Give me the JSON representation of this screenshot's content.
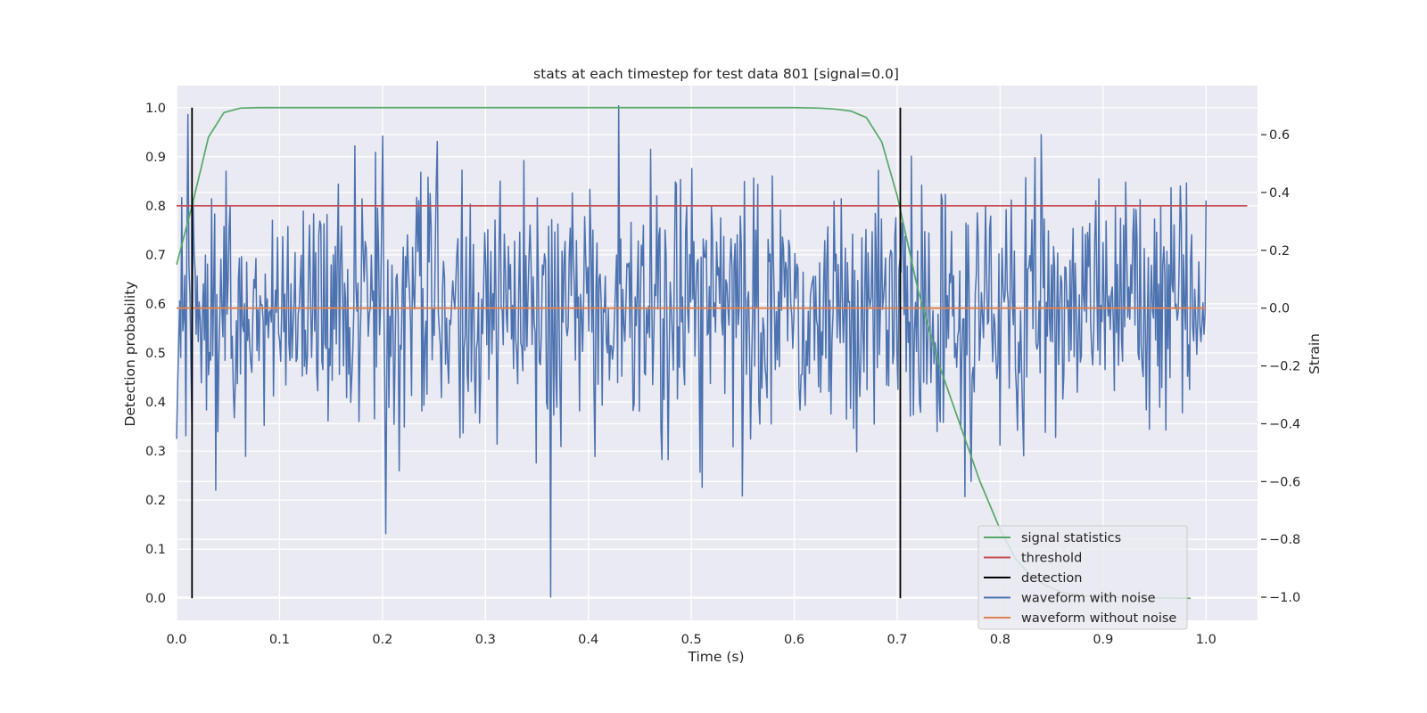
{
  "chart_data": {
    "type": "line",
    "title": "stats at each timestep for test data 801 [signal=0.0]",
    "xlabel": "Time (s)",
    "ylabel_left": "Detection probability",
    "ylabel_right": "Strain",
    "xlim": [
      0.0,
      1.05
    ],
    "ylim_left": [
      -0.045,
      1.045
    ],
    "ylim_right": [
      -1.08,
      0.77
    ],
    "xticks": [
      0.0,
      0.1,
      0.2,
      0.3,
      0.4,
      0.5,
      0.6,
      0.7,
      0.8,
      0.9,
      1.0
    ],
    "xtick_labels": [
      "0.0",
      "0.1",
      "0.2",
      "0.3",
      "0.4",
      "0.5",
      "0.6",
      "0.7",
      "0.8",
      "0.9",
      "1.0"
    ],
    "yticks_left": [
      0.0,
      0.1,
      0.2,
      0.3,
      0.4,
      0.5,
      0.6,
      0.7,
      0.8,
      0.9,
      1.0
    ],
    "ytick_labels_left": [
      "0.0",
      "0.1",
      "0.2",
      "0.3",
      "0.4",
      "0.5",
      "0.6",
      "0.7",
      "0.8",
      "0.9",
      "1.0"
    ],
    "yticks_right": [
      0.6,
      0.4,
      0.2,
      0.0,
      -0.2,
      -0.4,
      -0.6,
      -0.8,
      -1.0
    ],
    "ytick_labels_right": [
      "0.6",
      "0.4",
      "0.2",
      "0.0",
      "−0.2",
      "−0.4",
      "−0.6",
      "−0.8",
      "−1.0"
    ],
    "grid": true,
    "legend_position": "lower right",
    "series": [
      {
        "name": "signal statistics",
        "axis": "left",
        "color": "#55a868",
        "x": [
          0.0,
          0.015,
          0.031,
          0.046,
          0.062,
          0.08,
          0.1,
          0.2,
          0.3,
          0.4,
          0.5,
          0.6,
          0.625,
          0.64,
          0.655,
          0.67,
          0.685,
          0.7,
          0.72,
          0.74,
          0.76,
          0.78,
          0.8,
          0.815,
          0.83,
          0.845,
          0.86,
          0.88,
          0.9,
          0.95,
          0.985
        ],
        "y": [
          0.68,
          0.8,
          0.94,
          0.99,
          0.999,
          1.0,
          1.0,
          1.0,
          1.0,
          1.0,
          1.0,
          1.0,
          0.999,
          0.997,
          0.993,
          0.98,
          0.93,
          0.82,
          0.63,
          0.48,
          0.36,
          0.24,
          0.14,
          0.08,
          0.045,
          0.025,
          0.012,
          0.005,
          0.002,
          0.001,
          0.0
        ]
      },
      {
        "name": "threshold",
        "axis": "left",
        "color": "#c44e52",
        "x": [
          0.0,
          1.04
        ],
        "y": [
          0.8,
          0.8
        ]
      },
      {
        "name": "detection",
        "axis": "left",
        "color": "#000000",
        "vlines": [
          0.015,
          0.703
        ],
        "ymin": 0.0,
        "ymax": 1.0
      },
      {
        "name": "waveform with noise",
        "axis": "right",
        "color": "#4c72b0",
        "x_start": 0.0,
        "x_end": 1.0,
        "n_points": 1000,
        "mean": 0.0,
        "std": 0.22,
        "min": -1.0,
        "max": 0.7,
        "labeled_extremes": [
          {
            "x": 0.011,
            "y": 0.67
          },
          {
            "x": 0.038,
            "y": -0.63
          },
          {
            "x": 0.203,
            "y": -0.78
          },
          {
            "x": 0.363,
            "y": -1.0
          },
          {
            "x": 0.429,
            "y": 0.7
          },
          {
            "x": 0.511,
            "y": -0.62
          },
          {
            "x": 0.55,
            "y": -0.65
          },
          {
            "x": 0.84,
            "y": 0.6
          }
        ]
      },
      {
        "name": "waveform without noise",
        "axis": "right",
        "color": "#dd8452",
        "x": [
          0.0,
          1.0
        ],
        "y": [
          0.0,
          0.0
        ]
      }
    ]
  },
  "legend": {
    "items": [
      {
        "label": "signal statistics",
        "color": "#55a868"
      },
      {
        "label": "threshold",
        "color": "#c44e52"
      },
      {
        "label": "detection",
        "color": "#000000"
      },
      {
        "label": "waveform with noise",
        "color": "#4c72b0"
      },
      {
        "label": "waveform without noise",
        "color": "#dd8452"
      }
    ]
  },
  "colors": {
    "axes_background": "#eaeaf2",
    "grid": "#ffffff",
    "text": "#262626"
  }
}
